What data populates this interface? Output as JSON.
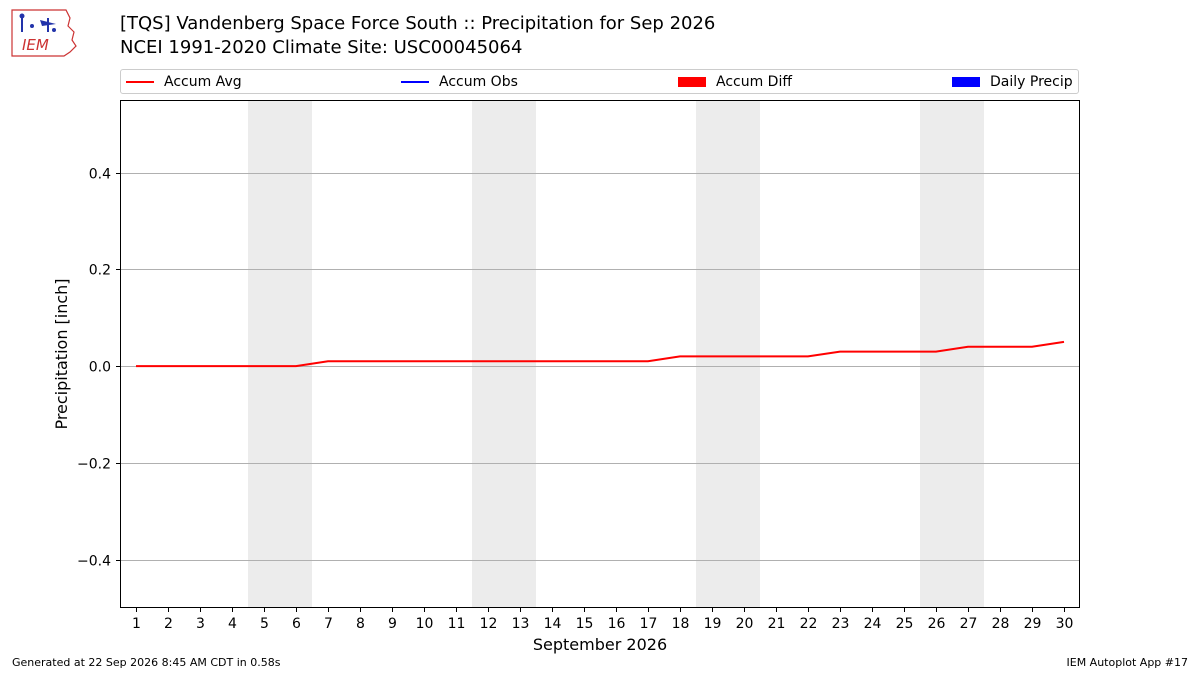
{
  "logo": {
    "text": "IEM"
  },
  "title_line1": "[TQS] Vandenberg Space Force South :: Precipitation for Sep 2026",
  "title_line2": "NCEI 1991-2020 Climate Site: USC00045064",
  "legend": [
    {
      "label": "Accum Avg",
      "color": "#ff0000",
      "kind": "line"
    },
    {
      "label": "Accum Obs",
      "color": "#0000ff",
      "kind": "line"
    },
    {
      "label": "Accum Diff",
      "color": "#ff0000",
      "kind": "patch"
    },
    {
      "label": "Daily Precip",
      "color": "#0000ff",
      "kind": "patch"
    }
  ],
  "footer_left": "Generated at 22 Sep 2026 8:45 AM CDT in 0.58s",
  "footer_right": "IEM Autoplot App #17",
  "chart_data": {
    "type": "line",
    "xlabel": "September 2026",
    "ylabel": "Precipitation [inch]",
    "xlim": [
      0.5,
      30.5
    ],
    "ylim": [
      -0.5,
      0.55
    ],
    "yticks": [
      -0.4,
      -0.2,
      0.0,
      0.2,
      0.4
    ],
    "ytick_labels": [
      "−0.4",
      "−0.2",
      "0.0",
      "0.2",
      "0.4"
    ],
    "x": [
      1,
      2,
      3,
      4,
      5,
      6,
      7,
      8,
      9,
      10,
      11,
      12,
      13,
      14,
      15,
      16,
      17,
      18,
      19,
      20,
      21,
      22,
      23,
      24,
      25,
      26,
      27,
      28,
      29,
      30
    ],
    "series": [
      {
        "name": "Accum Avg",
        "color": "#ff0000",
        "values": [
          0,
          0,
          0,
          0,
          0,
          0,
          0.01,
          0.01,
          0.01,
          0.01,
          0.01,
          0.01,
          0.01,
          0.01,
          0.01,
          0.01,
          0.01,
          0.02,
          0.02,
          0.02,
          0.02,
          0.02,
          0.03,
          0.03,
          0.03,
          0.03,
          0.04,
          0.04,
          0.04,
          0.05
        ]
      }
    ],
    "weekend_shading": [
      [
        5,
        6
      ],
      [
        12,
        13
      ],
      [
        19,
        20
      ],
      [
        26,
        27
      ]
    ],
    "grid": "y"
  }
}
